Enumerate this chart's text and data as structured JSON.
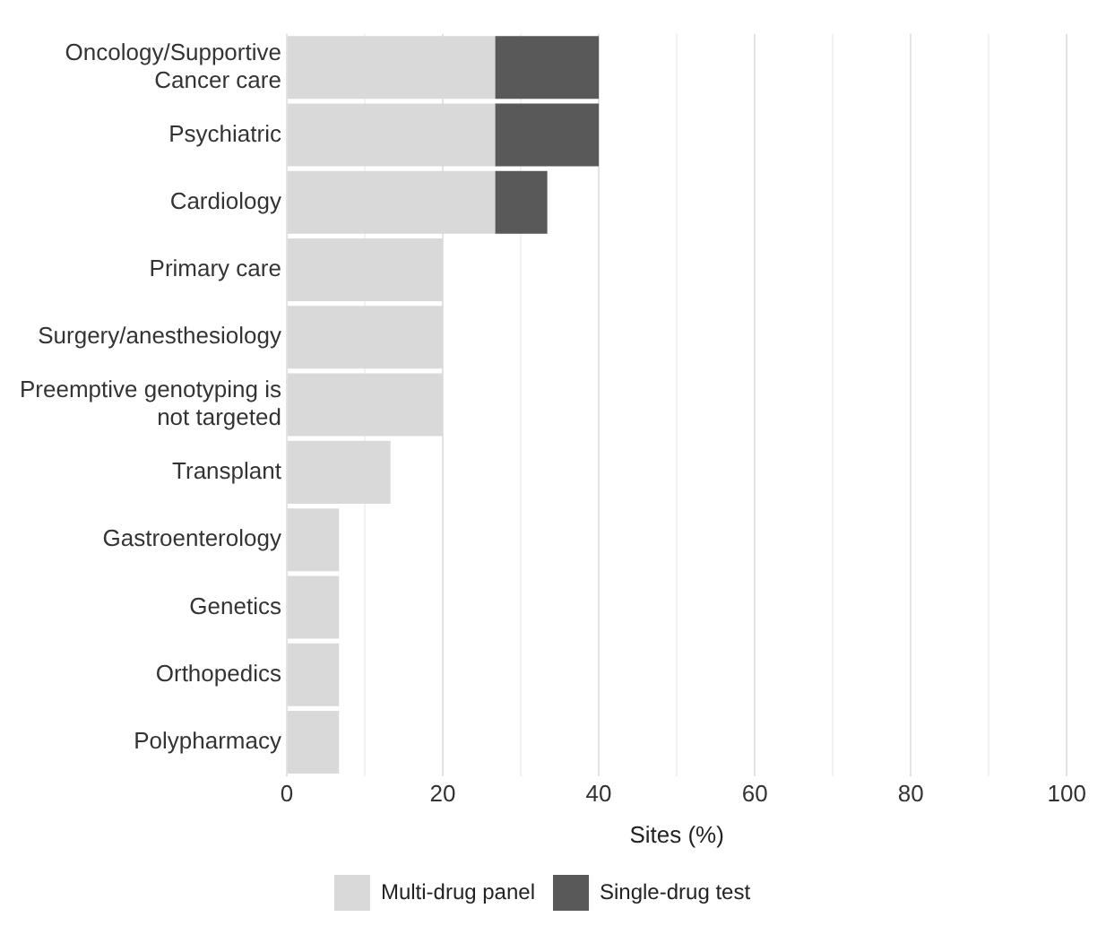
{
  "chart_data": {
    "type": "bar",
    "orientation": "horizontal",
    "stacked": true,
    "categories": [
      "Oncology/Supportive\nCancer care",
      "Psychiatric",
      "Cardiology",
      "Primary care",
      "Surgery/anesthesiology",
      "Preemptive genotyping is\nnot targeted",
      "Transplant",
      "Gastroenterology",
      "Genetics",
      "Orthopedics",
      "Polypharmacy"
    ],
    "series": [
      {
        "name": "Multi-drug panel",
        "color": "#d9d9d9",
        "values": [
          26.7,
          26.7,
          26.7,
          20,
          20,
          20,
          13.3,
          6.7,
          6.7,
          6.7,
          6.7
        ]
      },
      {
        "name": "Single-drug test",
        "color": "#595959",
        "values": [
          13.3,
          13.3,
          6.7,
          null,
          null,
          null,
          null,
          null,
          null,
          null,
          null
        ]
      }
    ],
    "xlabel": "Sites (%)",
    "xlim": [
      0,
      100
    ],
    "xticks": [
      0,
      {
        "value": 10,
        "label": null
      },
      20,
      {
        "value": 30,
        "label": null
      },
      40,
      {
        "value": 50,
        "label": null
      },
      60,
      {
        "value": 70,
        "label": null
      },
      80,
      {
        "value": 90,
        "label": null
      },
      100
    ],
    "grid": "x",
    "legend": "bottom"
  }
}
